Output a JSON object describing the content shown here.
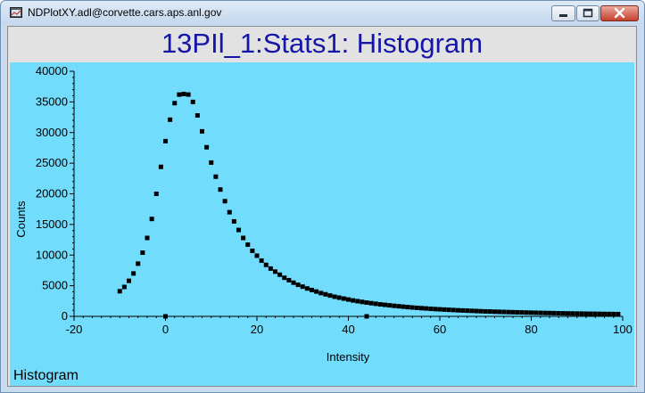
{
  "window": {
    "title": "NDPlotXY.adl@corvette.cars.aps.anl.gov"
  },
  "plot": {
    "title": "13PIl_1:Stats1: Histogram",
    "status_label": "Histogram"
  },
  "icons": {
    "app": "plot-app-icon",
    "minimize": "minimize-icon",
    "maximize": "maximize-icon",
    "close": "close-icon"
  },
  "colors": {
    "plot_background": "#72dcfc",
    "title_text": "#1515a8",
    "marker": "#000000"
  },
  "chart_data": {
    "type": "scatter",
    "title": "",
    "xlabel": "Intensity",
    "ylabel": "Counts",
    "xlim": [
      -20,
      100
    ],
    "ylim": [
      0,
      40000
    ],
    "xticks": [
      -20,
      0,
      20,
      40,
      60,
      80,
      100
    ],
    "yticks": [
      0,
      5000,
      10000,
      15000,
      20000,
      25000,
      30000,
      35000,
      40000
    ],
    "grid": false,
    "marker": "filled-square",
    "points": [
      [
        -10,
        4100
      ],
      [
        -9,
        4800
      ],
      [
        -8,
        5800
      ],
      [
        -7,
        7000
      ],
      [
        -6,
        8600
      ],
      [
        -5,
        10400
      ],
      [
        -4,
        12800
      ],
      [
        -3,
        15900
      ],
      [
        -2,
        20000
      ],
      [
        -1,
        24400
      ],
      [
        0,
        28600
      ],
      [
        1,
        32100
      ],
      [
        2,
        34800
      ],
      [
        3,
        36200
      ],
      [
        4,
        36300
      ],
      [
        5,
        36200
      ],
      [
        6,
        35000
      ],
      [
        7,
        32800
      ],
      [
        8,
        30200
      ],
      [
        9,
        27600
      ],
      [
        10,
        25100
      ],
      [
        11,
        22800
      ],
      [
        12,
        20700
      ],
      [
        13,
        18800
      ],
      [
        14,
        17000
      ],
      [
        15,
        15500
      ],
      [
        16,
        14100
      ],
      [
        17,
        12800
      ],
      [
        18,
        11700
      ],
      [
        19,
        10700
      ],
      [
        20,
        9900
      ],
      [
        21,
        9100
      ],
      [
        22,
        8400
      ],
      [
        23,
        7800
      ],
      [
        24,
        7300
      ],
      [
        25,
        6800
      ],
      [
        26,
        6300
      ],
      [
        27,
        5900
      ],
      [
        28,
        5500
      ],
      [
        29,
        5150
      ],
      [
        30,
        4850
      ],
      [
        31,
        4550
      ],
      [
        32,
        4300
      ],
      [
        33,
        4050
      ],
      [
        34,
        3800
      ],
      [
        35,
        3600
      ],
      [
        36,
        3400
      ],
      [
        37,
        3200
      ],
      [
        38,
        3050
      ],
      [
        39,
        2900
      ],
      [
        40,
        2750
      ],
      [
        41,
        2600
      ],
      [
        42,
        2480
      ],
      [
        43,
        2360
      ],
      [
        44,
        2250
      ],
      [
        45,
        2150
      ],
      [
        46,
        2050
      ],
      [
        47,
        1960
      ],
      [
        48,
        1880
      ],
      [
        49,
        1800
      ],
      [
        50,
        1720
      ],
      [
        51,
        1650
      ],
      [
        52,
        1580
      ],
      [
        53,
        1510
      ],
      [
        54,
        1450
      ],
      [
        55,
        1390
      ],
      [
        56,
        1340
      ],
      [
        57,
        1290
      ],
      [
        58,
        1240
      ],
      [
        59,
        1190
      ],
      [
        60,
        1150
      ],
      [
        61,
        1110
      ],
      [
        62,
        1070
      ],
      [
        63,
        1030
      ],
      [
        64,
        990
      ],
      [
        65,
        960
      ],
      [
        66,
        930
      ],
      [
        67,
        900
      ],
      [
        68,
        870
      ],
      [
        69,
        840
      ],
      [
        70,
        810
      ],
      [
        71,
        790
      ],
      [
        72,
        760
      ],
      [
        73,
        740
      ],
      [
        74,
        720
      ],
      [
        75,
        700
      ],
      [
        76,
        680
      ],
      [
        77,
        660
      ],
      [
        78,
        640
      ],
      [
        79,
        620
      ],
      [
        80,
        600
      ],
      [
        81,
        585
      ],
      [
        82,
        570
      ],
      [
        83,
        555
      ],
      [
        84,
        540
      ],
      [
        85,
        525
      ],
      [
        86,
        510
      ],
      [
        87,
        495
      ],
      [
        88,
        480
      ],
      [
        89,
        470
      ],
      [
        90,
        460
      ],
      [
        91,
        450
      ],
      [
        92,
        440
      ],
      [
        93,
        430
      ],
      [
        94,
        420
      ],
      [
        95,
        410
      ],
      [
        96,
        400
      ],
      [
        97,
        390
      ],
      [
        98,
        380
      ],
      [
        99,
        370
      ],
      [
        0,
        0
      ],
      [
        44,
        0
      ]
    ]
  }
}
